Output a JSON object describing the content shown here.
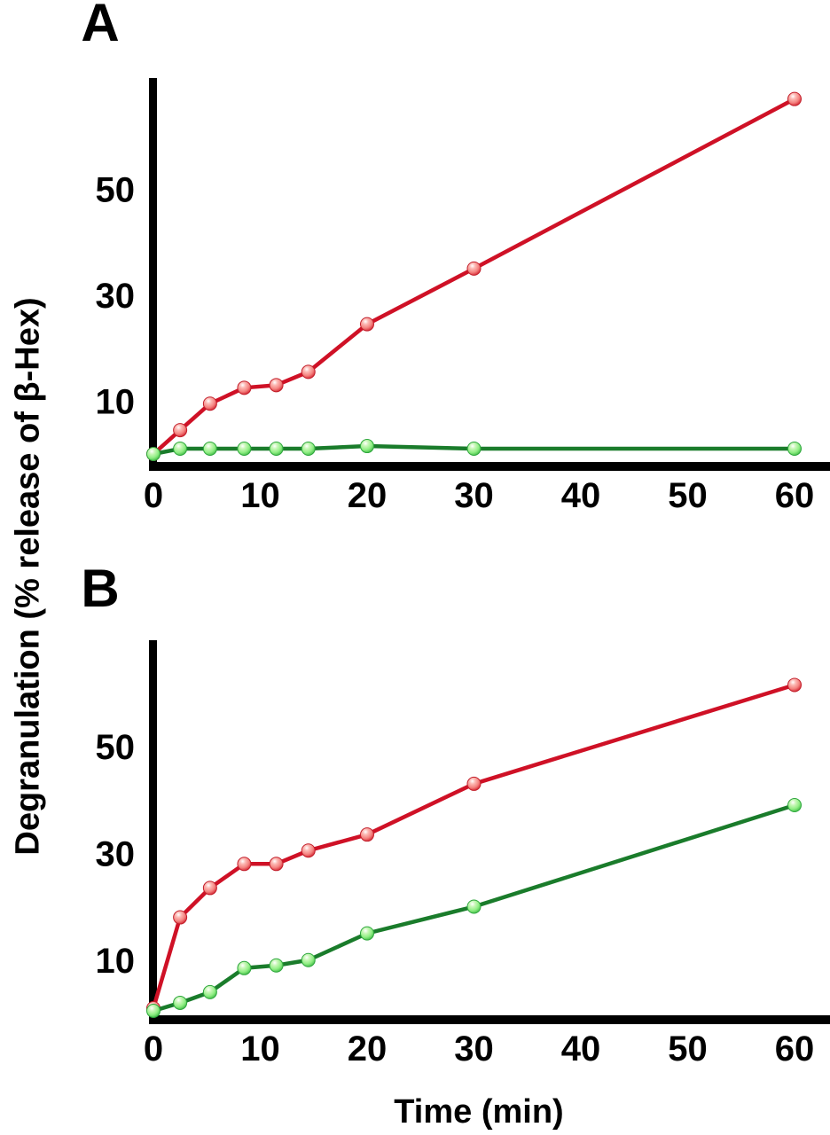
{
  "figure": {
    "panel_a_label": "A",
    "panel_b_label": "B",
    "ylabel": "Degranulation (% release of β-Hex)",
    "xlabel": "Time (min)"
  },
  "colors": {
    "axis": "#000000",
    "red_line": "#cf1126",
    "red_marker_body": "#f4827f",
    "red_marker_edge": "#c21e2a",
    "green_line": "#1a7c2b",
    "green_marker_body": "#8fee83",
    "green_marker_edge": "#2da63c"
  },
  "chart_data": [
    {
      "panel": "A",
      "type": "line",
      "title": "",
      "xlabel": "Time (min)",
      "ylabel": "Degranulation (% release of β-Hex)",
      "x": [
        0,
        2.5,
        5.3,
        8.5,
        11.5,
        14.5,
        20,
        30,
        60
      ],
      "xticks": [
        0,
        10,
        20,
        30,
        40,
        50,
        60
      ],
      "yticks": [
        10,
        30,
        50
      ],
      "xlim": [
        0,
        63
      ],
      "ylim": [
        0,
        71
      ],
      "grid": false,
      "legend": "none",
      "series": [
        {
          "name": "red",
          "color": "#cf1126",
          "marker": "sphere",
          "values": [
            0,
            4.5,
            9.5,
            12.5,
            13,
            15.5,
            24.5,
            35,
            67
          ]
        },
        {
          "name": "green",
          "color": "#1a7c2b",
          "marker": "sphere",
          "values": [
            0,
            1,
            1,
            1,
            1,
            1,
            1.5,
            1,
            1
          ]
        }
      ]
    },
    {
      "panel": "B",
      "type": "line",
      "title": "",
      "xlabel": "Time (min)",
      "ylabel": "Degranulation (% release of β-Hex)",
      "x": [
        0,
        2.5,
        5.3,
        8.5,
        11.5,
        14.5,
        20,
        30,
        60
      ],
      "xticks": [
        0,
        10,
        20,
        30,
        40,
        50,
        60
      ],
      "yticks": [
        10,
        30,
        50
      ],
      "xlim": [
        0,
        63
      ],
      "ylim": [
        0,
        71
      ],
      "grid": false,
      "legend": "none",
      "series": [
        {
          "name": "red",
          "color": "#cf1126",
          "marker": "sphere",
          "values": [
            1,
            18,
            23.5,
            28,
            28,
            30.5,
            33.5,
            43,
            61.5
          ]
        },
        {
          "name": "green",
          "color": "#1a7c2b",
          "marker": "sphere",
          "values": [
            0.5,
            2,
            4,
            8.5,
            9,
            10,
            15,
            20,
            39
          ]
        }
      ]
    }
  ]
}
